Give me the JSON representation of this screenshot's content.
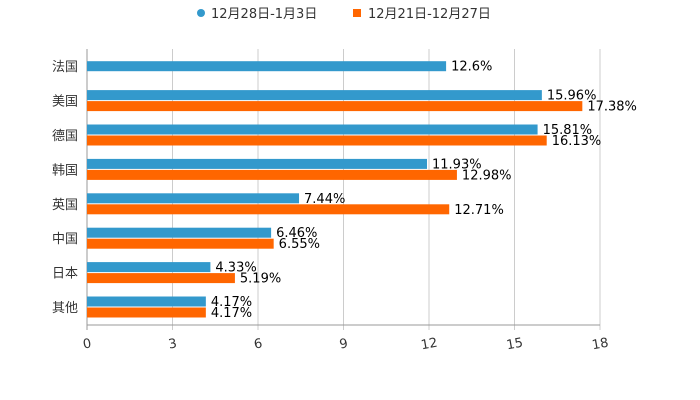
{
  "chart_data": {
    "type": "bar",
    "orientation": "horizontal",
    "categories": [
      "法国",
      "美国",
      "德国",
      "韩国",
      "英国",
      "中国",
      "日本",
      "其他"
    ],
    "series": [
      {
        "name": "12月28日-1月3日",
        "color": "#3399cc",
        "values": [
          12.6,
          15.96,
          15.81,
          11.93,
          7.44,
          6.46,
          4.33,
          4.17
        ],
        "labels": [
          "12.6%",
          "15.96%",
          "15.81%",
          "11.93%",
          "7.44%",
          "6.46%",
          "4.33%",
          "4.17%"
        ]
      },
      {
        "name": "12月21日-12月27日",
        "color": "#ff6600",
        "values": [
          null,
          17.38,
          16.13,
          12.98,
          12.71,
          6.55,
          5.19,
          4.17
        ],
        "labels": [
          "",
          "17.38%",
          "16.13%",
          "12.98%",
          "12.71%",
          "6.55%",
          "5.19%",
          "4.17%"
        ]
      }
    ],
    "xlim": [
      0,
      18
    ],
    "x_ticks": [
      "0",
      "3",
      "6",
      "9",
      "12",
      "15",
      "18"
    ],
    "grid": true,
    "legend": "top-center"
  }
}
